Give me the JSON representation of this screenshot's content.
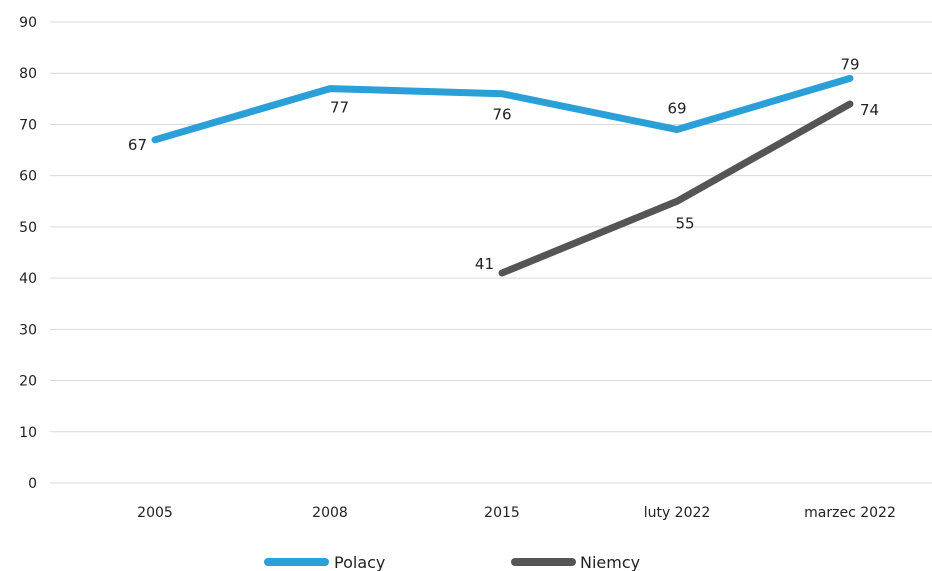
{
  "chart_data": {
    "type": "line",
    "title": "",
    "xlabel": "",
    "ylabel": "",
    "categories": [
      "2005",
      "2008",
      "2015",
      "luty 2022",
      "marzec 2022"
    ],
    "ylim": [
      0,
      90
    ],
    "yticks": [
      0,
      10,
      20,
      30,
      40,
      50,
      60,
      70,
      80,
      90
    ],
    "grid": true,
    "legend_position": "bottom",
    "series": [
      {
        "name": "Polacy",
        "color": "#2a9fd8",
        "values": [
          67,
          77,
          76,
          69,
          79
        ],
        "labels": [
          "67",
          "77",
          "76",
          "69",
          "79"
        ]
      },
      {
        "name": "Niemcy",
        "color": "#555555",
        "values": [
          null,
          null,
          41,
          55,
          74
        ],
        "labels": [
          "",
          "",
          "41",
          "55",
          "74"
        ]
      }
    ]
  }
}
